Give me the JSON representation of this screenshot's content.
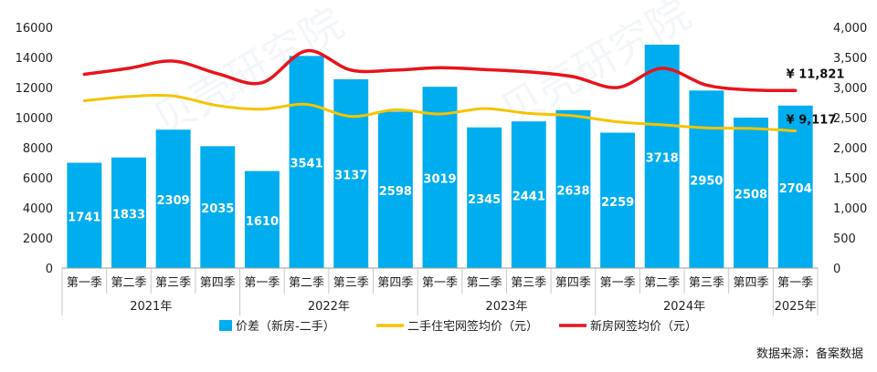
{
  "chart_data": {
    "type": "bar",
    "watermark": "贝壳研究院",
    "periods": [
      "第一季",
      "第二季",
      "第三季",
      "第四季",
      "第一季",
      "第二季",
      "第三季",
      "第四季",
      "第一季",
      "第二季",
      "第三季",
      "第四季",
      "第一季",
      "第二季",
      "第三季",
      "第四季",
      "第一季"
    ],
    "years": [
      {
        "label": "2021年",
        "count": 4
      },
      {
        "label": "2022年",
        "count": 4
      },
      {
        "label": "2023年",
        "count": 4
      },
      {
        "label": "2024年",
        "count": 4
      },
      {
        "label": "2025年",
        "count": 1
      }
    ],
    "y_left": {
      "min": 0,
      "max": 16000,
      "step": 2000,
      "ticks": [
        "0",
        "2000",
        "4000",
        "6000",
        "8000",
        "10000",
        "12000",
        "14000",
        "16000"
      ]
    },
    "y_right": {
      "min": 0,
      "max": 4000,
      "step": 500,
      "ticks": [
        "0",
        "500",
        "1,000",
        "1,500",
        "2,000",
        "2,500",
        "3,000",
        "3,500",
        "4,000"
      ]
    },
    "series": [
      {
        "name": "价差（新房-二手）",
        "kind": "bar",
        "axis": "left",
        "color": "#00AEEF",
        "values": [
          7000,
          7350,
          9200,
          8100,
          6450,
          14100,
          12550,
          10400,
          12050,
          9350,
          9750,
          10500,
          9000,
          14850,
          11800,
          10000,
          10800
        ],
        "labels": [
          "1741",
          "1833",
          "2309",
          "2035",
          "1610",
          "3541",
          "3137",
          "2598",
          "3019",
          "2345",
          "2441",
          "2638",
          "2259",
          "3718",
          "2950",
          "2508",
          "2704"
        ]
      },
      {
        "name": "二手住宅网签均价（元）",
        "kind": "line",
        "axis": "right",
        "color": "#F5C400",
        "values": [
          2780,
          2850,
          2860,
          2700,
          2640,
          2720,
          2520,
          2630,
          2560,
          2650,
          2570,
          2530,
          2430,
          2380,
          2330,
          2320,
          2280
        ]
      },
      {
        "name": "新房网签均价（元）",
        "kind": "line",
        "axis": "right",
        "color": "#E8141C",
        "values": [
          3220,
          3320,
          3440,
          3230,
          3080,
          3610,
          3290,
          3290,
          3330,
          3300,
          3260,
          3180,
          3000,
          3320,
          3040,
          2960,
          2950
        ]
      }
    ],
    "annotations": [
      {
        "text": "¥ 11,821",
        "series": 2,
        "index": 16
      },
      {
        "text": "¥ 9,117",
        "series": 1,
        "index": 16
      }
    ],
    "source": "数据来源：备案数据"
  }
}
